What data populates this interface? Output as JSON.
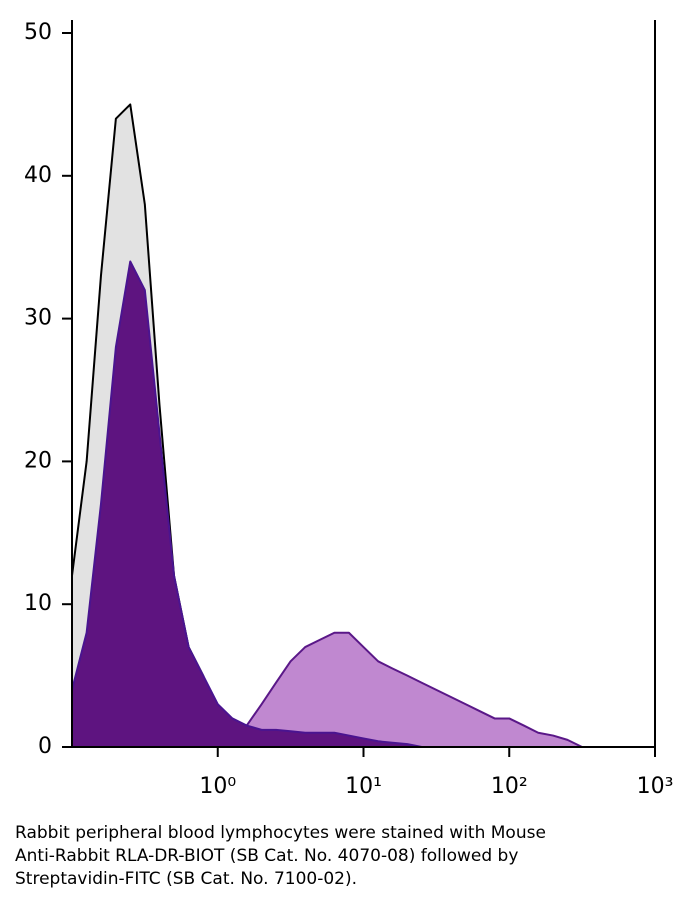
{
  "chart_data": {
    "type": "area",
    "x": [
      0.1,
      0.126,
      0.158,
      0.2,
      0.251,
      0.316,
      0.398,
      0.501,
      0.631,
      0.794,
      1,
      1.26,
      1.58,
      2,
      2.51,
      3.16,
      3.98,
      5.01,
      6.31,
      7.94,
      10,
      12.6,
      15.8,
      20,
      25.1,
      31.6,
      39.8,
      50.1,
      63.1,
      79.4,
      100,
      126,
      158,
      200,
      251,
      316,
      398,
      501,
      631,
      794,
      1000
    ],
    "series": [
      {
        "color": "#000000",
        "fill": "#e2e2e2",
        "values": [
          12,
          20,
          33,
          44,
          45,
          38,
          24,
          12,
          7,
          5,
          2.5,
          1.5,
          1,
          0.8,
          0.5,
          0.3,
          0.3,
          0.2,
          0.2,
          0.2,
          0.1,
          0.1,
          0,
          0,
          0,
          0,
          0,
          0,
          0,
          0,
          0,
          0,
          0,
          0,
          0,
          0,
          0,
          0,
          0,
          0,
          0
        ]
      },
      {
        "color": "#5a1888",
        "fill": "#c088d0",
        "values": [
          0,
          0,
          0,
          0,
          0,
          0,
          0,
          0,
          0,
          0,
          0.5,
          1,
          1.5,
          3,
          4.5,
          6,
          7,
          7.5,
          8,
          8,
          7,
          6,
          5.5,
          5,
          4.5,
          4,
          3.5,
          3,
          2.5,
          2,
          2,
          1.5,
          1,
          0.8,
          0.5,
          0,
          0,
          0,
          0,
          0,
          0
        ]
      },
      {
        "color": "#4a1490",
        "fill": "#5e1480",
        "values": [
          4,
          8,
          17,
          28,
          34,
          32,
          22,
          12,
          7,
          5,
          3,
          2,
          1.5,
          1.2,
          1.2,
          1.1,
          1,
          1,
          1,
          0.8,
          0.6,
          0.4,
          0.3,
          0.2,
          0,
          0,
          0,
          0,
          0,
          0,
          0,
          0,
          0,
          0,
          0,
          0,
          0,
          0,
          0,
          0,
          0
        ]
      }
    ],
    "xscale": "log",
    "xlim": [
      0.1,
      1000
    ],
    "xticks": [
      {
        "value": 1,
        "label": "10⁰"
      },
      {
        "value": 10,
        "label": "10¹"
      },
      {
        "value": 100,
        "label": "10²"
      },
      {
        "value": 1000,
        "label": "10³"
      }
    ],
    "ylim": [
      0,
      50
    ],
    "yticks": [
      0,
      10,
      20,
      30,
      40,
      50
    ],
    "caption": [
      "Rabbit peripheral blood lymphocytes were stained with Mouse",
      "Anti-Rabbit RLA-DR-BIOT (SB Cat. No. 4070-08) followed by",
      "Streptavidin-FITC (SB Cat. No. 7100-02)."
    ]
  }
}
